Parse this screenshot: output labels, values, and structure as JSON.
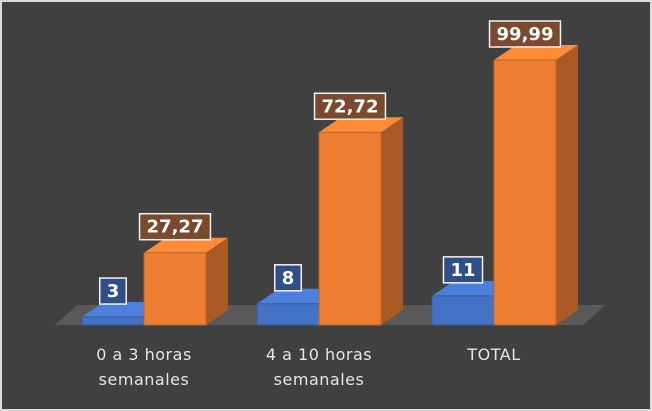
{
  "chart_data": {
    "type": "bar3d",
    "categories": [
      "0 a 3 horas semanales",
      "4 a 10 horas semanales",
      "TOTAL"
    ],
    "series": [
      {
        "color": "#4472c4",
        "values": [
          3,
          8,
          11
        ]
      },
      {
        "color": "#ed7d31",
        "values": [
          27.27,
          72.72,
          99.99
        ],
        "value_labels": [
          "27,27",
          "72,72",
          "99,99"
        ]
      }
    ]
  }
}
